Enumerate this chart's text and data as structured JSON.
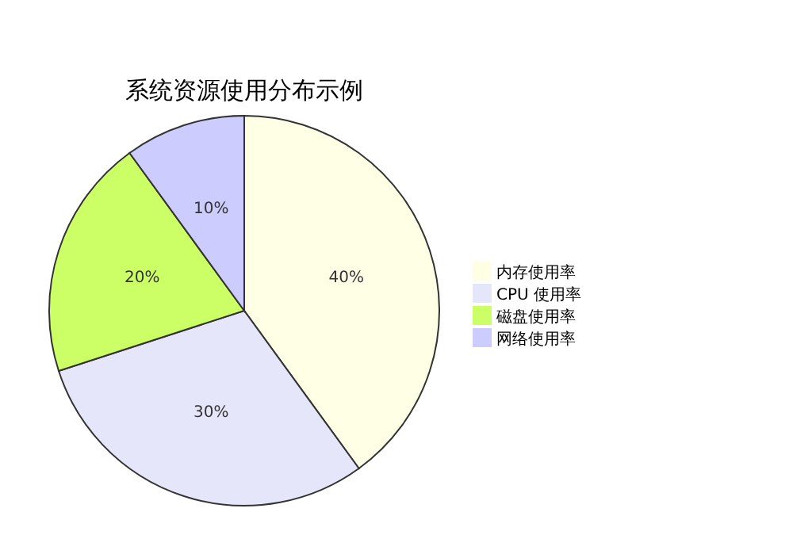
{
  "chart_data": {
    "type": "pie",
    "title": "系统资源使用分布示例",
    "categories": [
      "内存使用率",
      "CPU 使用率",
      "磁盘使用率",
      "网络使用率"
    ],
    "values": [
      40,
      30,
      20,
      10
    ],
    "value_labels": [
      "40%",
      "30%",
      "20%",
      "10%"
    ],
    "colors": [
      "#ffffe6",
      "#e6e6fa",
      "#ccff66",
      "#ccccff"
    ],
    "legend": "right"
  }
}
